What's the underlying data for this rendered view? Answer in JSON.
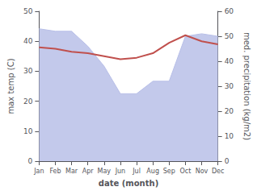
{
  "chart_data": {
    "type": "line",
    "categories": [
      "Jan",
      "Feb",
      "Mar",
      "Apr",
      "May",
      "Jun",
      "Jul",
      "Aug",
      "Sep",
      "Oct",
      "Nov",
      "Dec"
    ],
    "xlabel": "date (month)",
    "ylabel": "max temp (C)",
    "y2label": "med. precipitation (kg/m2)",
    "ylim": [
      0,
      50
    ],
    "yticks": [
      0,
      10,
      20,
      30,
      40,
      50
    ],
    "y2lim": [
      0,
      60
    ],
    "y2ticks": [
      0,
      10,
      20,
      30,
      40,
      50,
      60
    ],
    "grid": false,
    "series": [
      {
        "type": "area",
        "axis": "y2",
        "color": "#b8bfe8",
        "values": [
          53,
          52,
          52,
          46,
          38,
          27,
          27,
          32,
          32,
          50,
          51,
          50
        ]
      },
      {
        "type": "line",
        "color": "#c0504d",
        "values": [
          38,
          37.5,
          36.5,
          36.0,
          35.0,
          34.0,
          34.5,
          36.0,
          39.5,
          42.0,
          40.0,
          39.0
        ]
      }
    ]
  }
}
